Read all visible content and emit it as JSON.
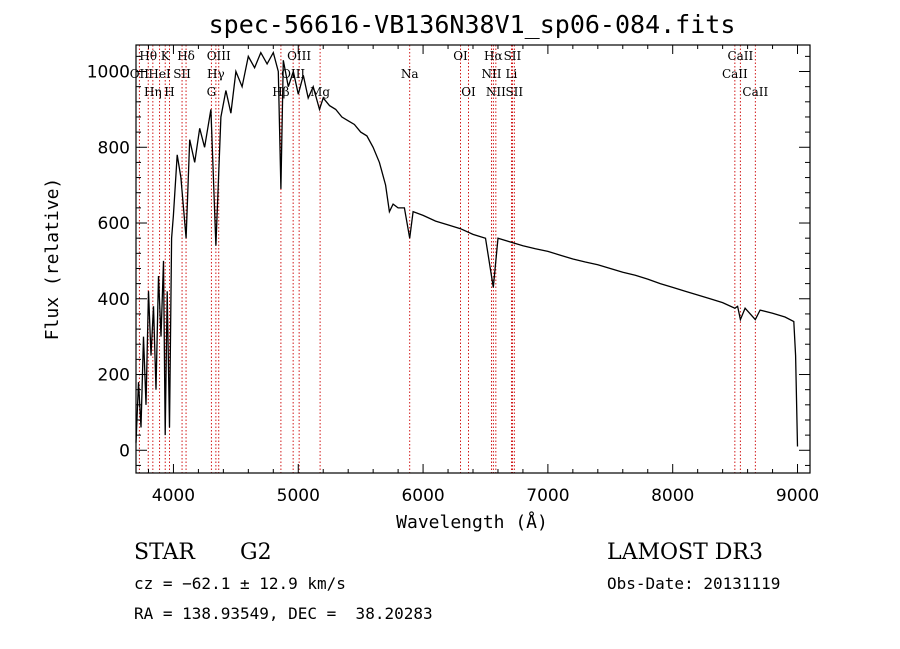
{
  "chart_data": {
    "type": "line",
    "title": "spec-56616-VB136N38V1_sp06-084.fits",
    "xlabel": "Wavelength (Å)",
    "ylabel": "Flux (relative)",
    "xlim": [
      3700,
      9100
    ],
    "ylim": [
      -60,
      1070
    ],
    "x_ticks": [
      4000,
      5000,
      6000,
      7000,
      8000,
      9000
    ],
    "x_tick_labels": [
      "4000",
      "5000",
      "6000",
      "7000",
      "8000",
      "9000"
    ],
    "y_ticks": [
      0,
      200,
      400,
      600,
      800,
      1000
    ],
    "y_tick_labels": [
      "0",
      "200",
      "400",
      "600",
      "800",
      "1000"
    ],
    "series": [
      {
        "name": "spectrum",
        "color": "#000000",
        "points": [
          [
            3700,
            20
          ],
          [
            3720,
            180
          ],
          [
            3740,
            60
          ],
          [
            3760,
            300
          ],
          [
            3780,
            120
          ],
          [
            3800,
            420
          ],
          [
            3820,
            250
          ],
          [
            3840,
            380
          ],
          [
            3860,
            160
          ],
          [
            3880,
            460
          ],
          [
            3900,
            300
          ],
          [
            3920,
            500
          ],
          [
            3934,
            40
          ],
          [
            3950,
            420
          ],
          [
            3968,
            60
          ],
          [
            3985,
            560
          ],
          [
            4000,
            620
          ],
          [
            4030,
            780
          ],
          [
            4060,
            720
          ],
          [
            4101,
            560
          ],
          [
            4130,
            820
          ],
          [
            4170,
            760
          ],
          [
            4210,
            850
          ],
          [
            4250,
            800
          ],
          [
            4300,
            900
          ],
          [
            4340,
            540
          ],
          [
            4380,
            880
          ],
          [
            4420,
            950
          ],
          [
            4460,
            890
          ],
          [
            4500,
            1000
          ],
          [
            4550,
            960
          ],
          [
            4600,
            1040
          ],
          [
            4650,
            1010
          ],
          [
            4700,
            1050
          ],
          [
            4750,
            1020
          ],
          [
            4800,
            1050
          ],
          [
            4840,
            1000
          ],
          [
            4861,
            690
          ],
          [
            4880,
            1030
          ],
          [
            4920,
            960
          ],
          [
            4960,
            1000
          ],
          [
            5000,
            940
          ],
          [
            5040,
            990
          ],
          [
            5080,
            930
          ],
          [
            5120,
            960
          ],
          [
            5170,
            900
          ],
          [
            5200,
            930
          ],
          [
            5250,
            910
          ],
          [
            5300,
            900
          ],
          [
            5350,
            880
          ],
          [
            5400,
            870
          ],
          [
            5450,
            860
          ],
          [
            5500,
            840
          ],
          [
            5550,
            830
          ],
          [
            5600,
            800
          ],
          [
            5650,
            760
          ],
          [
            5700,
            700
          ],
          [
            5730,
            630
          ],
          [
            5760,
            650
          ],
          [
            5800,
            640
          ],
          [
            5850,
            640
          ],
          [
            5893,
            560
          ],
          [
            5920,
            630
          ],
          [
            6000,
            620
          ],
          [
            6100,
            605
          ],
          [
            6200,
            595
          ],
          [
            6300,
            585
          ],
          [
            6400,
            570
          ],
          [
            6500,
            560
          ],
          [
            6563,
            430
          ],
          [
            6600,
            560
          ],
          [
            6700,
            550
          ],
          [
            6800,
            540
          ],
          [
            6900,
            532
          ],
          [
            7000,
            525
          ],
          [
            7100,
            515
          ],
          [
            7200,
            505
          ],
          [
            7300,
            497
          ],
          [
            7400,
            490
          ],
          [
            7500,
            480
          ],
          [
            7600,
            470
          ],
          [
            7700,
            462
          ],
          [
            7800,
            452
          ],
          [
            7900,
            440
          ],
          [
            8000,
            430
          ],
          [
            8100,
            420
          ],
          [
            8200,
            410
          ],
          [
            8300,
            400
          ],
          [
            8400,
            390
          ],
          [
            8498,
            375
          ],
          [
            8520,
            380
          ],
          [
            8542,
            345
          ],
          [
            8580,
            375
          ],
          [
            8662,
            345
          ],
          [
            8700,
            370
          ],
          [
            8800,
            362
          ],
          [
            8900,
            352
          ],
          [
            8970,
            340
          ],
          [
            8985,
            250
          ],
          [
            9000,
            10
          ]
        ]
      }
    ],
    "lines": [
      {
        "name": "Hθ",
        "x": 3798,
        "row": 0
      },
      {
        "name": "OII",
        "x": 3727,
        "row": 1
      },
      {
        "name": "Hη",
        "x": 3835,
        "row": 2
      },
      {
        "name": "HeI",
        "x": 3889,
        "row": 1
      },
      {
        "name": "K",
        "x": 3934,
        "row": 0
      },
      {
        "name": "SII",
        "x": 4069,
        "row": 1
      },
      {
        "name": "H",
        "x": 3968,
        "row": 2
      },
      {
        "name": "Hδ",
        "x": 4101,
        "row": 0
      },
      {
        "name": "OIII",
        "x": 4363,
        "row": 0
      },
      {
        "name": "Hγ",
        "x": 4340,
        "row": 1
      },
      {
        "name": "G",
        "x": 4304,
        "row": 2
      },
      {
        "name": "OIII",
        "x": 5007,
        "row": 0
      },
      {
        "name": "OIII",
        "x": 4959,
        "row": 1
      },
      {
        "name": "Hβ",
        "x": 4861,
        "row": 2
      },
      {
        "name": "Mg",
        "x": 5175,
        "row": 2
      },
      {
        "name": "Na",
        "x": 5893,
        "row": 1
      },
      {
        "name": "OI",
        "x": 6300,
        "row": 0
      },
      {
        "name": "OI",
        "x": 6364,
        "row": 2
      },
      {
        "name": "Hα",
        "x": 6563,
        "row": 0
      },
      {
        "name": "NII",
        "x": 6548,
        "row": 1
      },
      {
        "name": "NII",
        "x": 6583,
        "row": 2
      },
      {
        "name": "SII",
        "x": 6716,
        "row": 0
      },
      {
        "name": "Li",
        "x": 6708,
        "row": 1
      },
      {
        "name": "SII",
        "x": 6731,
        "row": 2
      },
      {
        "name": "CaII",
        "x": 8542,
        "row": 0
      },
      {
        "name": "CaII",
        "x": 8498,
        "row": 1
      },
      {
        "name": "CaII",
        "x": 8662,
        "row": 2
      }
    ]
  },
  "info": {
    "object_class": "STAR",
    "subclass": "G2",
    "survey": "LAMOST DR3",
    "cz": "cz = −62.1 ± 12.9 km/s",
    "obs_date": "Obs-Date: 20131119",
    "coords": "RA = 138.93549, DEC =  38.20283"
  },
  "colors": {
    "line_marker": "#cc0000",
    "spectrum": "#000000"
  }
}
